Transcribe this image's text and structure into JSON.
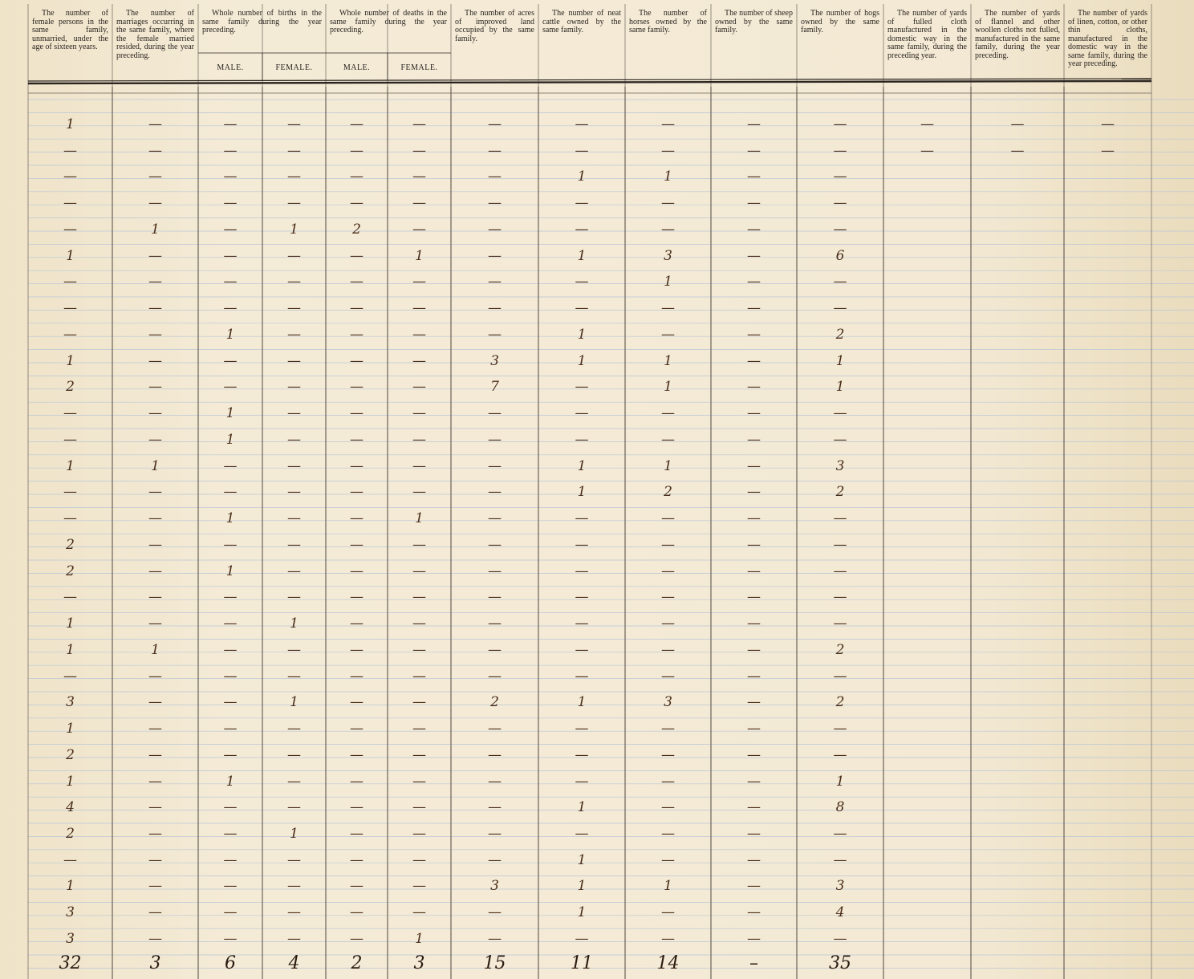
{
  "header": {
    "columns": [
      {
        "text": "The number of female persons in the same family, unmarried, under the age of sixteen years."
      },
      {
        "text": "The number of marriages occurring in the same family, where the female married resided, during the year preceding."
      },
      {
        "text": "Whole number of births in the same family during the year preceding.",
        "sub": [
          "MALE.",
          "FEMALE."
        ]
      },
      {
        "text": "Whole number of deaths in the same family during the year preceding.",
        "sub": [
          "MALE.",
          "FEMALE."
        ]
      },
      {
        "text": "The number of acres of improved land occupied by the same family."
      },
      {
        "text": "The number of neat cattle owned by the same family."
      },
      {
        "text": "The number of horses owned by the same family."
      },
      {
        "text": "The number of sheep owned by the same family."
      },
      {
        "text": "The number of hogs owned by the same family."
      },
      {
        "text": "The number of yards of fulled cloth manufactured in the domestic way in the same family, during the preceding year."
      },
      {
        "text": "The number of yards of flannel and other woollen cloths not fulled, manufactured in the same family, during the year preceding."
      },
      {
        "text": "The number of yards of linen, cotton, or other thin cloths, manufactured in the domestic way in the same family, during the year preceding."
      }
    ]
  },
  "table": {
    "rows": [
      [
        1,
        "—",
        "—",
        "—",
        "—",
        "—",
        "—",
        "—",
        "—",
        "—",
        "—",
        "—",
        "—",
        "—"
      ],
      [
        "—",
        "—",
        "—",
        "—",
        "—",
        "—",
        "—",
        "—",
        "—",
        "—",
        "—",
        "—",
        "—",
        "—"
      ],
      [
        "—",
        "—",
        "—",
        "—",
        "—",
        "—",
        "—",
        1,
        1,
        "—",
        "—",
        null,
        null,
        null
      ],
      [
        "—",
        "—",
        "—",
        "—",
        "—",
        "—",
        "—",
        "—",
        "—",
        "—",
        "—",
        null,
        null,
        null
      ],
      [
        "—",
        1,
        "—",
        1,
        2,
        "—",
        "—",
        "—",
        "—",
        "—",
        "—",
        null,
        null,
        null
      ],
      [
        1,
        "—",
        "—",
        "—",
        "—",
        1,
        "—",
        1,
        3,
        "—",
        6,
        null,
        null,
        null
      ],
      [
        "—",
        "—",
        "—",
        "—",
        "—",
        "—",
        "—",
        "—",
        1,
        "—",
        "—",
        null,
        null,
        null
      ],
      [
        "—",
        "—",
        "—",
        "—",
        "—",
        "—",
        "—",
        "—",
        "—",
        "—",
        "—",
        null,
        null,
        null
      ],
      [
        "—",
        "—",
        1,
        "—",
        "—",
        "—",
        "—",
        1,
        "—",
        "—",
        2,
        null,
        null,
        null
      ],
      [
        1,
        "—",
        "—",
        "—",
        "—",
        "—",
        3,
        1,
        1,
        "—",
        1,
        null,
        null,
        null
      ],
      [
        2,
        "—",
        "—",
        "—",
        "—",
        "—",
        7,
        "—",
        1,
        "—",
        1,
        null,
        null,
        null
      ],
      [
        "—",
        "—",
        1,
        "—",
        "—",
        "—",
        "—",
        "—",
        "—",
        "—",
        "—",
        null,
        null,
        null
      ],
      [
        "—",
        "—",
        1,
        "—",
        "—",
        "—",
        "—",
        "—",
        "—",
        "—",
        "—",
        null,
        null,
        null
      ],
      [
        1,
        1,
        "—",
        "—",
        "—",
        "—",
        "—",
        1,
        1,
        "—",
        3,
        null,
        null,
        null
      ],
      [
        "—",
        "—",
        "—",
        "—",
        "—",
        "—",
        "—",
        1,
        2,
        "—",
        2,
        null,
        null,
        null
      ],
      [
        "—",
        "—",
        1,
        "—",
        "—",
        1,
        "—",
        "—",
        "—",
        "—",
        "—",
        null,
        null,
        null
      ],
      [
        2,
        "—",
        "—",
        "—",
        "—",
        "—",
        "—",
        "—",
        "—",
        "—",
        "—",
        null,
        null,
        null
      ],
      [
        2,
        "—",
        1,
        "—",
        "—",
        "—",
        "—",
        "—",
        "—",
        "—",
        "—",
        null,
        null,
        null
      ],
      [
        "—",
        "—",
        "—",
        "—",
        "—",
        "—",
        "—",
        "—",
        "—",
        "—",
        "—",
        null,
        null,
        null
      ],
      [
        1,
        "—",
        "—",
        1,
        "—",
        "—",
        "—",
        "—",
        "—",
        "—",
        "—",
        null,
        null,
        null
      ],
      [
        1,
        1,
        "—",
        "—",
        "—",
        "—",
        "—",
        "—",
        "—",
        "—",
        2,
        null,
        null,
        null
      ],
      [
        "—",
        "—",
        "—",
        "—",
        "—",
        "—",
        "—",
        "—",
        "—",
        "—",
        "—",
        null,
        null,
        null
      ],
      [
        3,
        "—",
        "—",
        1,
        "—",
        "—",
        2,
        1,
        3,
        "—",
        2,
        null,
        null,
        null
      ],
      [
        1,
        "—",
        "—",
        "—",
        "—",
        "—",
        "—",
        "—",
        "—",
        "—",
        "—",
        null,
        null,
        null
      ],
      [
        2,
        "—",
        "—",
        "—",
        "—",
        "—",
        "—",
        "—",
        "—",
        "—",
        "—",
        null,
        null,
        null
      ],
      [
        1,
        "—",
        1,
        "—",
        "—",
        "—",
        "—",
        "—",
        "—",
        "—",
        1,
        null,
        null,
        null
      ],
      [
        4,
        "—",
        "—",
        "—",
        "—",
        "—",
        "—",
        1,
        "—",
        "—",
        8,
        null,
        null,
        null
      ],
      [
        2,
        "—",
        "—",
        1,
        "—",
        "—",
        "—",
        "—",
        "—",
        "—",
        "—",
        null,
        null,
        null
      ],
      [
        "—",
        "—",
        "—",
        "—",
        "—",
        "—",
        "—",
        1,
        "—",
        "—",
        "—",
        null,
        null,
        null
      ],
      [
        1,
        "—",
        "—",
        "—",
        "—",
        "—",
        3,
        1,
        1,
        "—",
        3,
        null,
        null,
        null
      ],
      [
        3,
        "—",
        "—",
        "—",
        "—",
        "—",
        "—",
        1,
        "—",
        "—",
        4,
        null,
        null,
        null
      ],
      [
        3,
        "—",
        "—",
        "—",
        "—",
        1,
        "—",
        "—",
        "—",
        "—",
        "—",
        null,
        null,
        null
      ]
    ],
    "totals": [
      32,
      3,
      6,
      4,
      2,
      3,
      15,
      11,
      14,
      "–",
      35,
      null,
      null,
      null
    ]
  }
}
